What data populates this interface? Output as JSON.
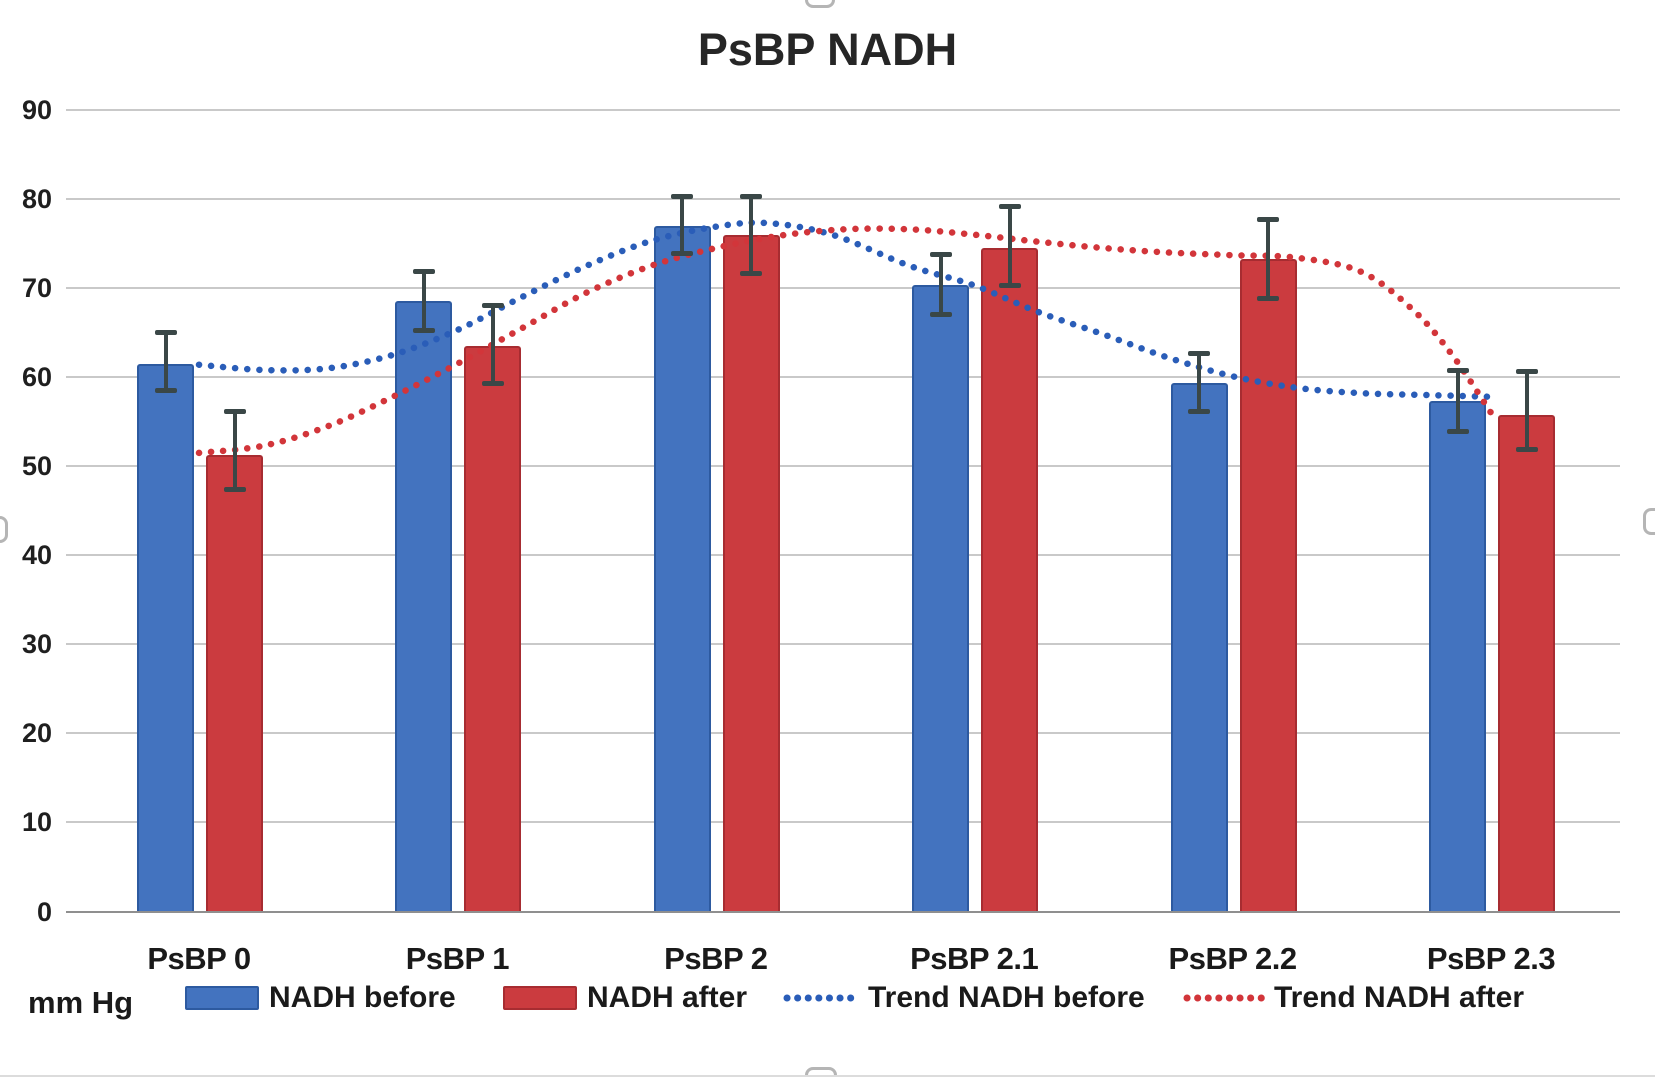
{
  "title": "PsBP NADH",
  "unit_label": "mm Hg",
  "colors": {
    "bar_before": "#4373BF",
    "bar_before_border": "#2D5AA0",
    "bar_after": "#CB3B3F",
    "bar_after_border": "#A72C31",
    "trend_before": "#2A5DB8",
    "trend_after": "#D2353A",
    "error_bar": "#3A4747",
    "gridline": "#C9C9C9",
    "axis_line": "#8F8F8F",
    "text": "#1F1F1F"
  },
  "legend": {
    "items": [
      {
        "label": "NADH before",
        "swatch": "bar",
        "color": "#4373BF",
        "border": "#2D5AA0"
      },
      {
        "label": "NADH after",
        "swatch": "bar",
        "color": "#CB3B3F",
        "border": "#A72C31"
      },
      {
        "label": "Trend NADH before",
        "swatch": "dotted",
        "color": "#2A5DB8"
      },
      {
        "label": "Trend NADH after",
        "swatch": "dotted",
        "color": "#D2353A"
      }
    ]
  },
  "chart_data": {
    "type": "bar",
    "title": "PsBP NADH",
    "categories": [
      "PsBP 0",
      "PsBP 1",
      "PsBP 2",
      "PsBP 2.1",
      "PsBP 2.2",
      "PsBP 2.3"
    ],
    "xlabel": "",
    "ylabel": "mm Hg",
    "ylim": [
      0,
      90
    ],
    "y_ticks": [
      90,
      80,
      70,
      60,
      50,
      40,
      30,
      20,
      10,
      0
    ],
    "grid": true,
    "legend_position": "bottom",
    "series": [
      {
        "name": "NADH before",
        "values": [
          61.5,
          68.5,
          77.0,
          70.3,
          59.3,
          57.3
        ],
        "error_low": [
          58.7,
          65.4,
          74.0,
          67.2,
          56.3,
          54.1
        ],
        "error_high": [
          64.8,
          71.7,
          80.1,
          73.6,
          62.5,
          60.6
        ]
      },
      {
        "name": "NADH after",
        "values": [
          51.3,
          63.5,
          76.0,
          74.5,
          73.3,
          55.8
        ],
        "error_low": [
          47.6,
          59.5,
          71.8,
          70.5,
          69.0,
          52.0
        ],
        "error_high": [
          56.0,
          67.9,
          80.1,
          79.0,
          77.5,
          60.5
        ]
      }
    ],
    "trends": [
      {
        "name": "Trend NADH before",
        "points": [
          [
            0,
            61.4
          ],
          [
            0.25,
            60.8
          ],
          [
            0.5,
            61.0
          ],
          [
            0.75,
            62.5
          ],
          [
            1,
            65.3
          ],
          [
            1.25,
            69.0
          ],
          [
            1.5,
            72.5
          ],
          [
            1.75,
            75.3
          ],
          [
            2,
            76.9
          ],
          [
            2.2,
            77.3
          ],
          [
            2.45,
            76.0
          ],
          [
            2.75,
            72.5
          ],
          [
            3,
            70.3
          ],
          [
            3.25,
            67.3
          ],
          [
            3.5,
            64.8
          ],
          [
            3.75,
            62.2
          ],
          [
            4,
            60.1
          ],
          [
            4.25,
            58.8
          ],
          [
            4.5,
            58.2
          ],
          [
            4.75,
            58.0
          ],
          [
            5,
            57.8
          ]
        ]
      },
      {
        "name": "Trend NADH after",
        "points": [
          [
            0,
            51.5
          ],
          [
            0.25,
            52.3
          ],
          [
            0.5,
            54.5
          ],
          [
            0.75,
            57.8
          ],
          [
            1,
            61.5
          ],
          [
            1.25,
            65.5
          ],
          [
            1.5,
            69.5
          ],
          [
            1.75,
            72.5
          ],
          [
            2,
            74.5
          ],
          [
            2.25,
            75.9
          ],
          [
            2.5,
            76.6
          ],
          [
            2.75,
            76.6
          ],
          [
            3,
            76.0
          ],
          [
            3.25,
            75.2
          ],
          [
            3.5,
            74.5
          ],
          [
            3.75,
            74.0
          ],
          [
            4,
            73.7
          ],
          [
            4.25,
            73.4
          ],
          [
            4.5,
            71.8
          ],
          [
            4.7,
            67.5
          ],
          [
            4.85,
            62.5
          ],
          [
            5,
            56.0
          ]
        ]
      }
    ]
  }
}
